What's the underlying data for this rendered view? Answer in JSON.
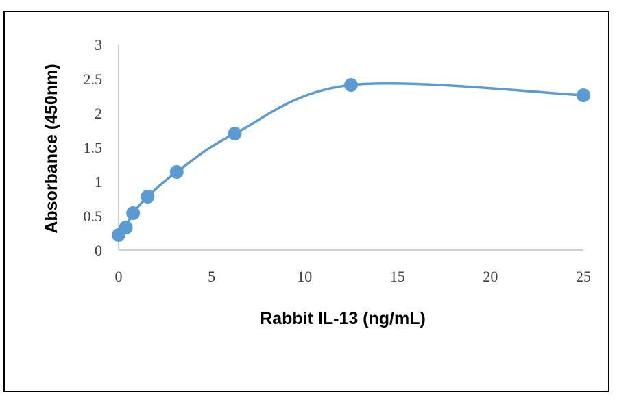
{
  "chart_data": {
    "type": "scatter",
    "title": "",
    "xlabel": "Rabbit IL-13 (ng/mL)",
    "ylabel": "Absorbance (450nm)",
    "xlim": [
      0,
      25
    ],
    "ylim": [
      0,
      3
    ],
    "xticks": [
      0,
      5,
      10,
      15,
      20,
      25
    ],
    "yticks": [
      0,
      0.5,
      1,
      1.5,
      2,
      2.5,
      3
    ],
    "xtick_labels": [
      "0",
      "5",
      "10",
      "15",
      "20",
      "25"
    ],
    "ytick_labels": [
      "0",
      "0.5",
      "1",
      "1.5",
      "2",
      "2.5",
      "3"
    ],
    "grid": false,
    "legend": "none",
    "smooth_line": true,
    "color": "#5b9bd5",
    "series": [
      {
        "x": [
          0,
          0.39,
          0.78,
          1.56,
          3.125,
          6.25,
          12.5,
          25
        ],
        "y": [
          0.22,
          0.33,
          0.54,
          0.78,
          1.14,
          1.7,
          2.41,
          2.26
        ]
      }
    ]
  }
}
